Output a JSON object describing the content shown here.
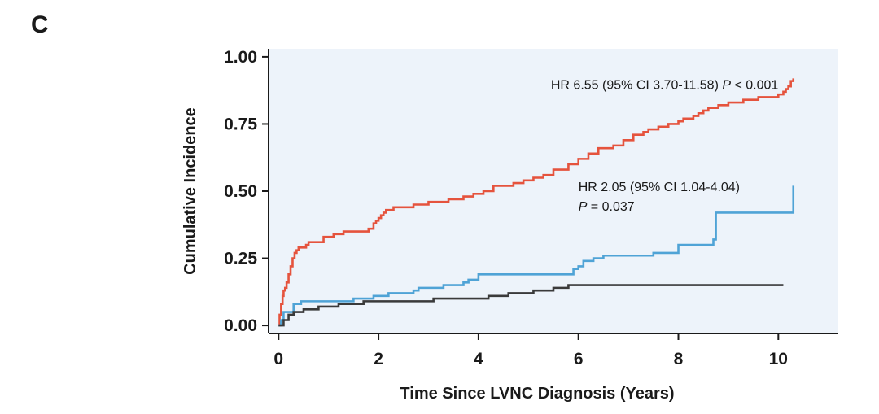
{
  "panel_label": "C",
  "colors": {
    "background": "#edf3fa",
    "red": "#e5533d",
    "blue": "#4fa3d6",
    "dark": "#3a3a3a",
    "axis": "#1a1a1a"
  },
  "chart_data": {
    "type": "line",
    "step": true,
    "title": "",
    "xlabel": "Time Since LVNC Diagnosis (Years)",
    "ylabel": "Cumulative Incidence",
    "xlim": [
      -0.2,
      11.2
    ],
    "ylim": [
      -0.03,
      1.03
    ],
    "xticks": [
      0,
      2,
      4,
      6,
      8,
      10
    ],
    "xtick_labels": [
      "0",
      "2",
      "4",
      "6",
      "8",
      "10"
    ],
    "yticks": [
      0.0,
      0.25,
      0.5,
      0.75,
      1.0
    ],
    "ytick_labels": [
      "0.00",
      "0.25",
      "0.50",
      "0.75",
      "1.00"
    ],
    "series": [
      {
        "name": "red",
        "color": "#e5533d",
        "x": [
          0,
          0.02,
          0.05,
          0.08,
          0.1,
          0.13,
          0.16,
          0.2,
          0.24,
          0.28,
          0.32,
          0.36,
          0.4,
          0.45,
          0.5,
          0.55,
          0.6,
          0.75,
          0.9,
          1.1,
          1.3,
          1.5,
          1.8,
          1.9,
          1.95,
          2.0,
          2.05,
          2.1,
          2.15,
          2.3,
          2.6,
          2.7,
          3.0,
          3.4,
          3.7,
          3.9,
          4.1,
          4.3,
          4.7,
          4.9,
          5.1,
          5.3,
          5.5,
          5.8,
          6.0,
          6.2,
          6.4,
          6.7,
          6.9,
          7.1,
          7.3,
          7.4,
          7.6,
          7.8,
          8.0,
          8.1,
          8.3,
          8.4,
          8.5,
          8.6,
          8.8,
          9.0,
          9.1,
          9.3,
          9.6,
          9.8,
          10.0,
          10.1,
          10.15,
          10.2,
          10.25,
          10.3
        ],
        "y": [
          0.0,
          0.04,
          0.08,
          0.11,
          0.13,
          0.14,
          0.16,
          0.19,
          0.22,
          0.25,
          0.27,
          0.28,
          0.29,
          0.29,
          0.29,
          0.3,
          0.31,
          0.31,
          0.33,
          0.34,
          0.35,
          0.35,
          0.36,
          0.38,
          0.39,
          0.4,
          0.41,
          0.42,
          0.43,
          0.44,
          0.44,
          0.45,
          0.46,
          0.47,
          0.48,
          0.49,
          0.5,
          0.52,
          0.53,
          0.54,
          0.55,
          0.56,
          0.58,
          0.6,
          0.62,
          0.64,
          0.66,
          0.67,
          0.69,
          0.71,
          0.72,
          0.73,
          0.74,
          0.75,
          0.76,
          0.77,
          0.78,
          0.79,
          0.8,
          0.81,
          0.82,
          0.83,
          0.83,
          0.84,
          0.85,
          0.85,
          0.86,
          0.87,
          0.88,
          0.89,
          0.91,
          0.92
        ]
      },
      {
        "name": "blue",
        "color": "#4fa3d6",
        "x": [
          0,
          0.05,
          0.1,
          0.3,
          0.45,
          1.5,
          1.9,
          2.2,
          2.7,
          2.8,
          3.3,
          3.7,
          3.8,
          4.0,
          5.9,
          6.0,
          6.1,
          6.3,
          6.5,
          7.5,
          8.0,
          8.7,
          8.75,
          10.25,
          10.3
        ],
        "y": [
          0.0,
          0.02,
          0.05,
          0.08,
          0.09,
          0.1,
          0.11,
          0.12,
          0.13,
          0.14,
          0.15,
          0.16,
          0.17,
          0.19,
          0.21,
          0.22,
          0.24,
          0.25,
          0.26,
          0.27,
          0.3,
          0.32,
          0.42,
          0.42,
          0.52
        ]
      },
      {
        "name": "dark",
        "color": "#3a3a3a",
        "x": [
          0,
          0.1,
          0.2,
          0.3,
          0.5,
          0.8,
          1.2,
          1.7,
          2.4,
          3.1,
          3.7,
          4.2,
          4.6,
          5.1,
          5.5,
          5.8,
          6.1,
          6.5,
          7.0,
          8.0,
          9.0,
          10.0,
          10.1
        ],
        "y": [
          0.0,
          0.02,
          0.04,
          0.05,
          0.06,
          0.07,
          0.08,
          0.09,
          0.09,
          0.1,
          0.1,
          0.11,
          0.12,
          0.13,
          0.14,
          0.15,
          0.15,
          0.15,
          0.15,
          0.15,
          0.15,
          0.15,
          0.15
        ]
      }
    ],
    "annotations": [
      {
        "id": "red_hr",
        "lines": [
          "HR 6.55 (95% CI 3.70-11.58) ",
          "P",
          " < 0.001"
        ],
        "x": 10.0,
        "y": 0.88
      },
      {
        "id": "blue_hr",
        "lines": [
          "HR 2.05 (95% CI 1.04-4.04)",
          "P",
          " = 0.037"
        ],
        "x": 6.0,
        "y": 0.5
      }
    ]
  }
}
